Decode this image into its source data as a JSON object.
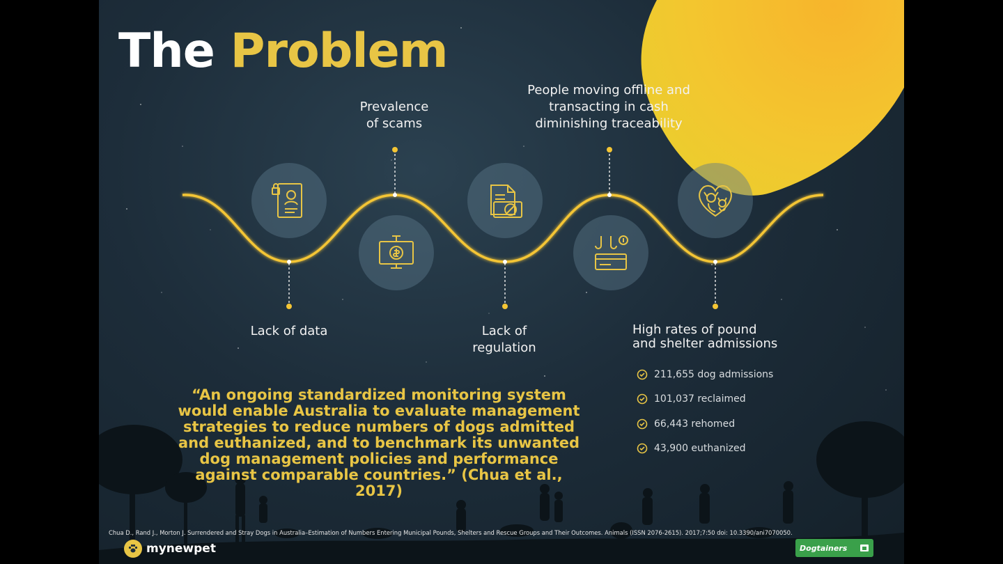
{
  "title": {
    "part1": "The",
    "part2": "Problem"
  },
  "wave_labels": {
    "scams": "Prevalence\nof scams",
    "offline": "People moving offline and\ntransacting in cash\ndiminishing traceability",
    "lack_data": "Lack of data",
    "lack_regulation": "Lack of\nregulation",
    "admissions": "High rates of pound\nand shelter admissions"
  },
  "icons": [
    "identity-document-icon",
    "scam-monitor-icon",
    "blocked-file-icon",
    "cash-card-hook-icon",
    "pets-heart-icon"
  ],
  "stats": [
    "211,655 dog admissions",
    "101,037 reclaimed",
    "66,443 rehomed",
    "43,900 euthanized"
  ],
  "quote": "“An ongoing standardized monitoring system would enable Australia to evaluate management strategies to reduce numbers of dogs admitted and euthanized, and to benchmark its unwanted dog management policies and performance against comparable countries.” (Chua et al., 2017)",
  "citation": "Chua D., Rand J., Morton J. Surrendered and Stray Dogs in Australia–Estimation of Numbers Entering Municipal Pounds, Shelters and Rescue Groups and Their Outcomes. Animals (ISSN 2076-2615). 2017;7:50 doi: 10.3390/ani7070050.",
  "brand": "mynewpet",
  "partner": "Dogtainers",
  "colors": {
    "accent": "#e8c545",
    "background": "#1d2d3a",
    "blob": "#f3c62f"
  }
}
